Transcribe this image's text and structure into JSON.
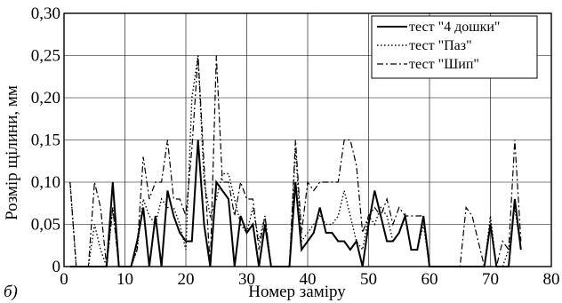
{
  "figure": {
    "panel_label": "б)"
  },
  "chart_data": {
    "type": "line",
    "xlabel": "Номер заміру",
    "ylabel": "Розмір щілини, мм",
    "xlim": [
      0,
      80
    ],
    "ylim": [
      0,
      0.3
    ],
    "x_ticks": [
      "0",
      "10",
      "20",
      "30",
      "40",
      "50",
      "60",
      "70",
      "80"
    ],
    "y_ticks": [
      "0",
      "0,05",
      "0,10",
      "0,15",
      "0,20",
      "0,25",
      "0,30"
    ],
    "grid": true,
    "legend_position": "top-right",
    "series": [
      {
        "name": "тест \"4 дошки\"",
        "style": "solid",
        "color": "#000000",
        "x": [
          1,
          2,
          3,
          4,
          5,
          6,
          7,
          8,
          9,
          10,
          11,
          12,
          13,
          14,
          15,
          16,
          17,
          18,
          19,
          20,
          21,
          22,
          23,
          24,
          25,
          26,
          27,
          28,
          29,
          30,
          31,
          32,
          33,
          34,
          35,
          36,
          37,
          38,
          39,
          40,
          41,
          42,
          43,
          44,
          45,
          46,
          47,
          48,
          49,
          50,
          51,
          52,
          53,
          54,
          55,
          56,
          57,
          58,
          59,
          60,
          61,
          62,
          63,
          64,
          65,
          66,
          67,
          68,
          69,
          70,
          71,
          72,
          73,
          74,
          75
        ],
        "y": [
          0,
          0,
          0,
          0,
          0,
          0,
          0,
          0.1,
          0,
          0,
          0,
          0.03,
          0.07,
          0,
          0.06,
          0,
          0.09,
          0.06,
          0.04,
          0.03,
          0.03,
          0.15,
          0.05,
          0,
          0.1,
          0.09,
          0.08,
          0,
          0.06,
          0.04,
          0.05,
          0,
          0.05,
          0,
          0,
          0,
          0,
          0.1,
          0.02,
          0.03,
          0.04,
          0.07,
          0.04,
          0.04,
          0.03,
          0.03,
          0.02,
          0.03,
          0,
          0.05,
          0.09,
          0.06,
          0.03,
          0.03,
          0.04,
          0.06,
          0.02,
          0.02,
          0.06,
          0,
          0,
          0,
          0,
          0,
          0,
          0,
          0,
          0,
          0,
          0.05,
          0,
          0,
          0,
          0.08,
          0.02
        ]
      },
      {
        "name": "тест \"Паз\"",
        "style": "dotted",
        "color": "#000000",
        "x": [
          1,
          2,
          3,
          4,
          5,
          6,
          7,
          8,
          9,
          10,
          11,
          12,
          13,
          14,
          15,
          16,
          17,
          18,
          19,
          20,
          21,
          22,
          23,
          24,
          25,
          26,
          27,
          28,
          29,
          30,
          31,
          32,
          33,
          34,
          35,
          36,
          37,
          38,
          39,
          40,
          41,
          42,
          43,
          44,
          45,
          46,
          47,
          48,
          49,
          50,
          51,
          52,
          53,
          54,
          55,
          56,
          57,
          58,
          59,
          60,
          61,
          62,
          63,
          64,
          65,
          66,
          67,
          68,
          69,
          70,
          71,
          72,
          73,
          74,
          75
        ],
        "y": [
          0.1,
          0,
          0,
          0,
          0.05,
          0.02,
          0,
          0.07,
          0,
          0,
          0,
          0.02,
          0.08,
          0.06,
          0.05,
          0.08,
          0.07,
          0.07,
          0.05,
          0.02,
          0.2,
          0.25,
          0.1,
          0.06,
          0.08,
          0.11,
          0.11,
          0.08,
          0.05,
          0.04,
          0.07,
          0.03,
          0.06,
          0,
          0,
          0,
          0,
          0.14,
          0.03,
          0.04,
          0.05,
          0.06,
          0.05,
          0.05,
          0.06,
          0.09,
          0.06,
          0.03,
          0.02,
          0.06,
          0.05,
          0.07,
          0.06,
          0.03,
          0.04,
          0.06,
          0.02,
          0.02,
          0.05,
          0,
          0,
          0,
          0,
          0,
          0,
          0,
          0,
          0,
          0,
          0.06,
          0,
          0,
          0.02,
          0.07,
          0.02
        ]
      },
      {
        "name": "тест \"Шип\"",
        "style": "dashdot",
        "color": "#000000",
        "x": [
          1,
          2,
          3,
          4,
          5,
          6,
          7,
          8,
          9,
          10,
          11,
          12,
          13,
          14,
          15,
          16,
          17,
          18,
          19,
          20,
          21,
          22,
          23,
          24,
          25,
          26,
          27,
          28,
          29,
          30,
          31,
          32,
          33,
          34,
          35,
          36,
          37,
          38,
          39,
          40,
          41,
          42,
          43,
          44,
          45,
          46,
          47,
          48,
          49,
          50,
          51,
          52,
          53,
          54,
          55,
          56,
          57,
          58,
          59,
          60,
          61,
          62,
          63,
          64,
          65,
          66,
          67,
          68,
          69,
          70,
          71,
          72,
          73,
          74,
          75
        ],
        "y": [
          0.1,
          0,
          0,
          0,
          0.1,
          0.07,
          0,
          0.07,
          0,
          0,
          0,
          0.02,
          0.13,
          0.08,
          0.1,
          0.1,
          0.15,
          0.08,
          0.08,
          0.06,
          0.14,
          0.25,
          0.12,
          0,
          0.25,
          0.1,
          0.1,
          0.06,
          0.1,
          0.08,
          0.08,
          0.02,
          0.06,
          0,
          0,
          0,
          0,
          0.15,
          0.04,
          0.1,
          0.09,
          0.1,
          0.1,
          0.1,
          0.1,
          0.15,
          0.15,
          0.12,
          0.04,
          0.06,
          0.07,
          0.06,
          0.08,
          0.05,
          0.07,
          0.06,
          0.06,
          0.06,
          0.06,
          0,
          0,
          0,
          0,
          0,
          0,
          0.07,
          0.06,
          0.03,
          0,
          0,
          0,
          0.03,
          0.02,
          0.15,
          0.03
        ]
      }
    ]
  }
}
